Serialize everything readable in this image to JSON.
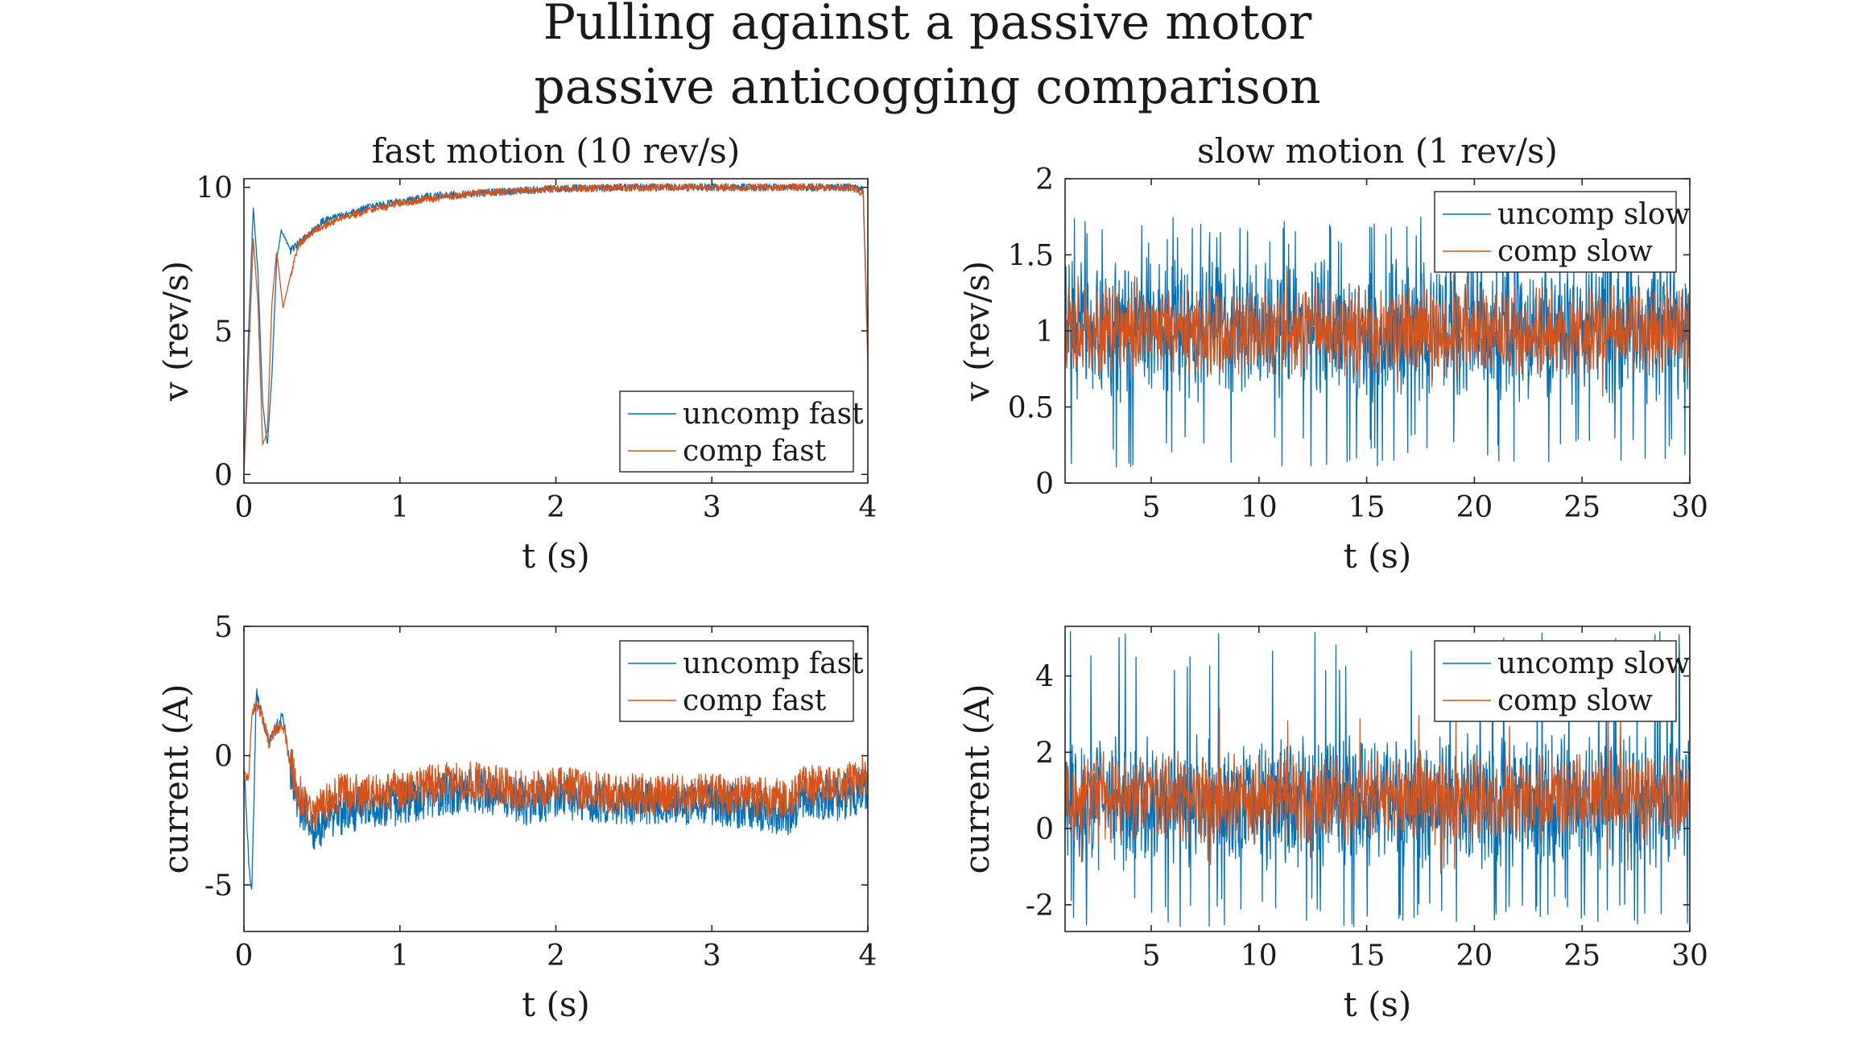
{
  "figure": {
    "title_line1": "Pulling against a passive motor",
    "title_line2": "passive anticogging comparison"
  },
  "colors": {
    "uncomp": "#0072BD",
    "comp": "#D95319"
  },
  "chart_data": [
    {
      "id": "fast_velocity",
      "type": "line",
      "title": "fast motion (10 rev/s)",
      "xlabel": "t (s)",
      "ylabel": "v (rev/s)",
      "xlim": [
        0,
        4
      ],
      "ylim": [
        -0.3,
        10.3
      ],
      "xticks": [
        0,
        1,
        2,
        3,
        4
      ],
      "xtick_labels": [
        "0",
        "1",
        "2",
        "3",
        "4"
      ],
      "yticks": [
        0,
        5,
        10
      ],
      "ytick_labels": [
        "0",
        "5",
        "10"
      ],
      "legend_position": "bottom-right",
      "series": [
        {
          "name": "uncomp fast",
          "color": "#0072BD",
          "x": [
            0,
            0.03,
            0.06,
            0.09,
            0.12,
            0.15,
            0.18,
            0.21,
            0.24,
            0.3,
            0.4,
            0.5,
            0.6,
            0.8,
            1.0,
            1.2,
            1.5,
            2.0,
            2.5,
            3.0,
            3.5,
            3.9,
            3.97,
            4.0
          ],
          "y": [
            0.2,
            5.0,
            9.3,
            7.0,
            2.5,
            1.0,
            3.5,
            7.5,
            8.5,
            7.8,
            8.3,
            8.8,
            9.0,
            9.3,
            9.5,
            9.7,
            9.8,
            9.95,
            10.0,
            10.0,
            10.0,
            10.0,
            9.9,
            4.5
          ],
          "noise": 0.13
        },
        {
          "name": "comp fast",
          "color": "#D95319",
          "x": [
            0,
            0.03,
            0.06,
            0.09,
            0.12,
            0.15,
            0.18,
            0.21,
            0.25,
            0.28,
            0.35,
            0.45,
            0.6,
            0.8,
            1.0,
            1.2,
            1.5,
            2.0,
            2.5,
            3.0,
            3.5,
            3.9,
            3.97,
            4.0
          ],
          "y": [
            0.0,
            4.0,
            8.2,
            6.0,
            1.0,
            1.5,
            6.0,
            7.8,
            5.8,
            6.5,
            8.0,
            8.5,
            8.9,
            9.2,
            9.45,
            9.6,
            9.8,
            9.95,
            10.0,
            10.0,
            10.0,
            10.0,
            9.8,
            4.0
          ],
          "noise": 0.13
        }
      ]
    },
    {
      "id": "slow_velocity",
      "type": "line",
      "title": "slow motion (1 rev/s)",
      "xlabel": "t (s)",
      "ylabel": "v (rev/s)",
      "xlim": [
        1,
        30
      ],
      "ylim": [
        0,
        2
      ],
      "xticks": [
        5,
        10,
        15,
        20,
        25,
        30
      ],
      "xtick_labels": [
        "5",
        "10",
        "15",
        "20",
        "25",
        "30"
      ],
      "yticks": [
        0,
        0.5,
        1,
        1.5,
        2
      ],
      "ytick_labels": [
        "0",
        "0.5",
        "1",
        "1.5",
        "2"
      ],
      "legend_position": "top-right",
      "series": [
        {
          "name": "uncomp slow",
          "color": "#0072BD",
          "mean": 1.0,
          "amplitude": 0.35,
          "min": 0.1,
          "max": 1.75,
          "spike_rate": 0.06,
          "points": 1400
        },
        {
          "name": "comp slow",
          "color": "#D95319",
          "mean": 1.0,
          "amplitude": 0.22,
          "min": 0.55,
          "max": 1.45,
          "spike_rate": 0.01,
          "points": 1400
        }
      ]
    },
    {
      "id": "fast_current",
      "type": "line",
      "title": "",
      "xlabel": "t (s)",
      "ylabel": "current (A)",
      "xlim": [
        0,
        4
      ],
      "ylim": [
        -6.8,
        5
      ],
      "xticks": [
        0,
        1,
        2,
        3,
        4
      ],
      "xtick_labels": [
        "0",
        "1",
        "2",
        "3",
        "4"
      ],
      "yticks": [
        -5,
        0,
        5
      ],
      "ytick_labels": [
        "-5",
        "0",
        "5"
      ],
      "legend_position": "top-right",
      "series": [
        {
          "name": "uncomp fast",
          "color": "#0072BD",
          "x": [
            0,
            0.03,
            0.05,
            0.08,
            0.12,
            0.16,
            0.2,
            0.25,
            0.3,
            0.35,
            0.45,
            0.6,
            0.8,
            1.0,
            1.2,
            1.5,
            1.8,
            2.0,
            2.5,
            3.0,
            3.5,
            3.6,
            3.8,
            4.0
          ],
          "y": [
            -0.5,
            -4.0,
            -5.5,
            2.5,
            1.5,
            0.5,
            1.0,
            1.5,
            -0.5,
            -1.8,
            -2.8,
            -2.3,
            -2.0,
            -1.8,
            -1.5,
            -1.3,
            -1.8,
            -1.6,
            -1.8,
            -1.8,
            -2.2,
            -1.4,
            -1.7,
            -1.2
          ],
          "noise": 0.9
        },
        {
          "name": "comp fast",
          "color": "#D95319",
          "x": [
            0,
            0.03,
            0.05,
            0.08,
            0.12,
            0.16,
            0.2,
            0.25,
            0.3,
            0.35,
            0.45,
            0.6,
            0.8,
            1.0,
            1.2,
            1.5,
            1.8,
            2.0,
            2.5,
            3.0,
            3.5,
            3.6,
            3.8,
            4.0
          ],
          "y": [
            -0.5,
            -1.0,
            1.5,
            2.0,
            1.5,
            0.5,
            1.0,
            1.2,
            -0.3,
            -1.5,
            -2.3,
            -1.5,
            -1.5,
            -1.3,
            -1.1,
            -1.0,
            -1.4,
            -1.2,
            -1.5,
            -1.5,
            -1.7,
            -1.1,
            -1.3,
            -0.7
          ],
          "noise": 0.8
        }
      ]
    },
    {
      "id": "slow_current",
      "type": "line",
      "title": "",
      "xlabel": "t (s)",
      "ylabel": "current (A)",
      "xlim": [
        1,
        30
      ],
      "ylim": [
        -2.7,
        5.3
      ],
      "xticks": [
        5,
        10,
        15,
        20,
        25,
        30
      ],
      "xtick_labels": [
        "5",
        "10",
        "15",
        "20",
        "25",
        "30"
      ],
      "yticks": [
        -2,
        0,
        2,
        4
      ],
      "ytick_labels": [
        "-2",
        "0",
        "2",
        "4"
      ],
      "legend_position": "top-right",
      "series": [
        {
          "name": "uncomp slow",
          "color": "#0072BD",
          "mean": 0.7,
          "amplitude": 1.3,
          "min": -2.6,
          "max": 5.2,
          "spike_rate": 0.07,
          "points": 1400
        },
        {
          "name": "comp slow",
          "color": "#D95319",
          "mean": 0.8,
          "amplitude": 0.9,
          "min": -1.2,
          "max": 3.2,
          "spike_rate": 0.01,
          "points": 1400
        }
      ]
    }
  ]
}
